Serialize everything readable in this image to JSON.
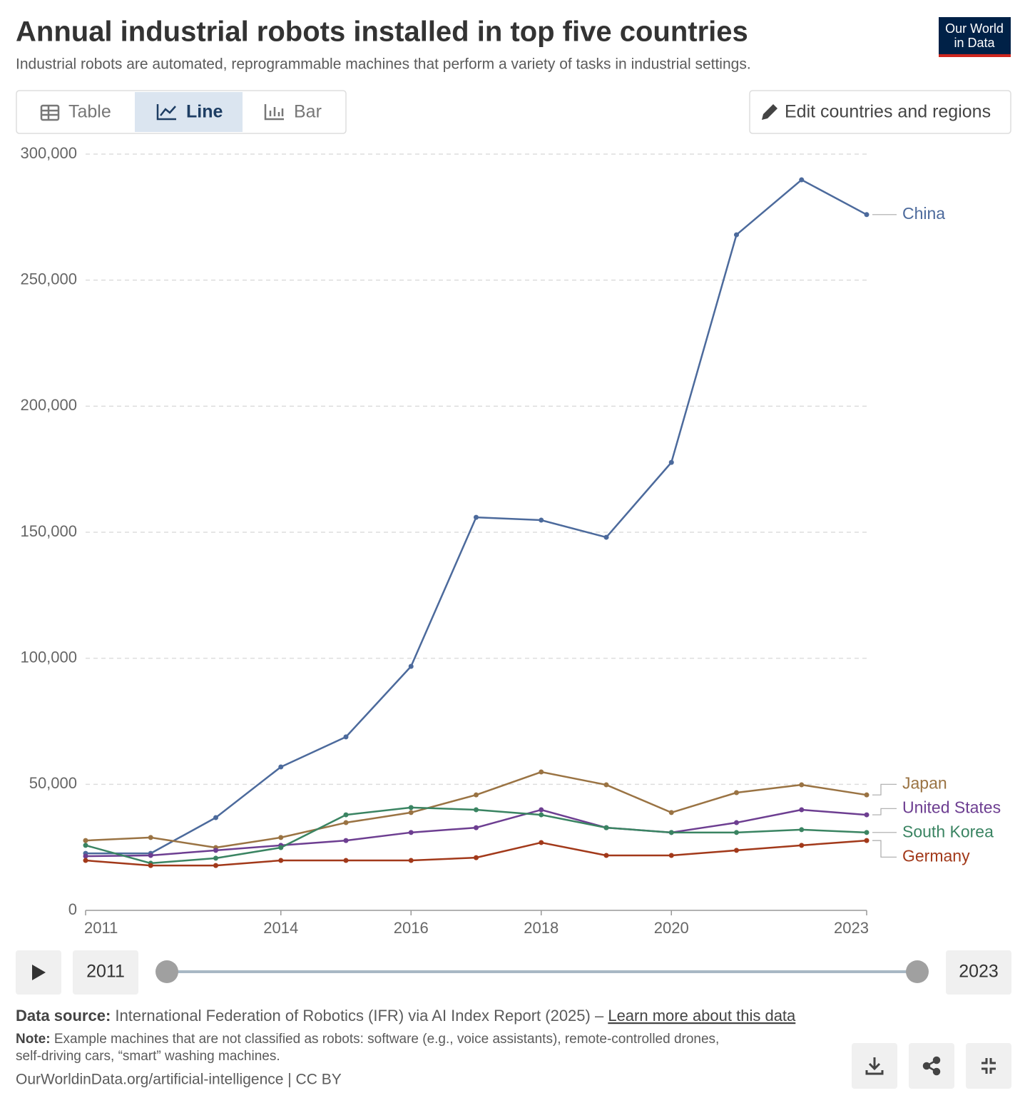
{
  "chart_data": {
    "type": "line",
    "title": "Annual industrial robots installed in top five countries",
    "subtitle": "Industrial robots are automated, reprogrammable machines that perform a variety of tasks in industrial settings.",
    "x": [
      2011,
      2012,
      2013,
      2014,
      2015,
      2016,
      2017,
      2018,
      2019,
      2020,
      2021,
      2022,
      2023
    ],
    "xlim": [
      2011,
      2023
    ],
    "xticks": [
      2011,
      2014,
      2016,
      2018,
      2020,
      2023
    ],
    "ylim": [
      0,
      300000
    ],
    "yticks": [
      0,
      {
        "value": 50000,
        "label": "50,000"
      },
      {
        "value": 100000,
        "label": "100,000"
      },
      {
        "value": 150000,
        "label": "150,000"
      },
      {
        "value": 200000,
        "label": "200,000"
      },
      {
        "value": 250000,
        "label": "250,000"
      },
      {
        "value": 300000,
        "label": "300,000"
      }
    ],
    "grid": true,
    "series": [
      {
        "name": "China",
        "color": "#4c6a9c",
        "values": [
          22600,
          22600,
          36800,
          56900,
          68800,
          96800,
          155900,
          154800,
          148000,
          177700,
          268000,
          289800,
          276000
        ]
      },
      {
        "name": "Japan",
        "color": "#9a7343",
        "values": [
          27700,
          28900,
          24900,
          28900,
          34800,
          38800,
          45800,
          54900,
          49800,
          38800,
          46700,
          49800,
          45800
        ]
      },
      {
        "name": "United States",
        "color": "#6d3e91",
        "values": [
          21500,
          21800,
          23800,
          25800,
          27700,
          30900,
          32800,
          39900,
          32800,
          30900,
          34800,
          39900,
          37900
        ]
      },
      {
        "name": "South Korea",
        "color": "#3a8462",
        "values": [
          25800,
          18700,
          20700,
          24900,
          37900,
          40800,
          39900,
          37900,
          32800,
          30900,
          30900,
          32000,
          30900
        ]
      },
      {
        "name": "Germany",
        "color": "#a2391a",
        "values": [
          19800,
          17800,
          17800,
          19800,
          19800,
          19800,
          20900,
          26900,
          21800,
          21800,
          23800,
          25800,
          27700
        ]
      }
    ]
  },
  "controls": {
    "tabs": [
      "Table",
      "Line",
      "Bar"
    ],
    "selected_tab": "Line",
    "edit_button": "Edit countries and regions",
    "timeline": {
      "start": 2011,
      "end": 2023
    }
  },
  "logo": [
    "Our World",
    "in Data"
  ],
  "footer": {
    "source_label": "Data source:",
    "source": "International Federation of Robotics (IFR) via AI Index Report (2025) –",
    "source_link": "Learn more about this data",
    "note_label": "Note:",
    "note_lines": [
      "Example machines that are not classified as robots: software (e.g., voice assistants), remote-controlled drones,",
      "self-driving cars, “smart” washing machines."
    ],
    "license": "OurWorldinData.org/artificial-intelligence | CC BY"
  }
}
